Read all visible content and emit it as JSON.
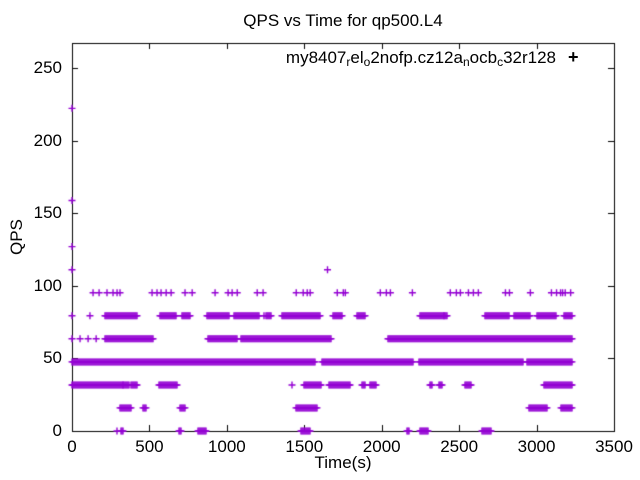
{
  "window": {
    "background": "#ffffff",
    "frame_color": "#000000"
  },
  "legend": {
    "plain_name": "my8407_rel_o2nofp.cz12a_nocb_c32r128",
    "segments": [
      {
        "text": "my8407"
      },
      {
        "text": "r",
        "sub": true
      },
      {
        "text": "el"
      },
      {
        "text": "o",
        "sub": true
      },
      {
        "text": "2nofp.cz12a"
      },
      {
        "text": "n",
        "sub": true
      },
      {
        "text": "ocb"
      },
      {
        "text": "c",
        "sub": true
      },
      {
        "text": "32r128"
      }
    ],
    "marker_glyph": "+",
    "marker_color": "#9400D3",
    "position": "top-right-inside"
  },
  "chart_data": {
    "type": "scatter",
    "title": "QPS vs Time for qp500.L4",
    "xlabel": "Time(s)",
    "ylabel": "QPS",
    "xlim": [
      0,
      3500
    ],
    "ylim": [
      0,
      267
    ],
    "xticks": [
      0,
      500,
      1000,
      1500,
      2000,
      2500,
      3000,
      3500
    ],
    "yticks": [
      0,
      50,
      100,
      150,
      200,
      250
    ],
    "grid": false,
    "tick_style": "inward-mirrored",
    "series": [
      {
        "name": "my8407_rel_o2nofp.cz12a_nocb_c32r128",
        "marker": "plus",
        "color": "#9400D3"
      }
    ],
    "x_data_range": [
      0,
      3230
    ],
    "qps_levels": [
      0,
      15.9,
      31.7,
      47.6,
      63.5,
      79.4,
      95.2
    ],
    "bands": [
      {
        "qps": 95.2,
        "x": [
          136,
          175,
          226,
          265,
          291,
          310,
          517,
          549,
          575,
          608,
          640,
          730,
          776,
          924,
          1008,
          1034,
          1067,
          1196,
          1234,
          1448,
          1493,
          1519,
          1538,
          1713,
          1752,
          1765,
          1991,
          2030,
          2056,
          2198,
          2443,
          2482,
          2508,
          2560,
          2592,
          2624,
          2799,
          2825,
          2960,
          3096,
          3129,
          3155,
          3168,
          3185,
          3220
        ]
      },
      {
        "qps": 79.4,
        "x": [
          0,
          116
        ],
        "segments": [
          {
            "x0": 213,
            "x1": 1900,
            "coverage": 0.58,
            "mean_run_s": 130
          },
          {
            "x0": 1900,
            "x1": 2400,
            "coverage": 0.42,
            "mean_run_s": 85
          },
          {
            "x0": 2400,
            "x1": 3230,
            "coverage": 0.6,
            "mean_run_s": 130
          }
        ]
      },
      {
        "qps": 63.5,
        "x": [
          0,
          52,
          104,
          156
        ],
        "segments": [
          {
            "x0": 210,
            "x1": 3230,
            "coverage": 0.88,
            "mean_run_s": 840
          }
        ]
      },
      {
        "qps": 47.6,
        "segments": [
          {
            "x0": 0,
            "x1": 3230,
            "coverage": 0.93,
            "mean_run_s": 1030
          }
        ]
      },
      {
        "qps": 31.7,
        "segments": [
          {
            "x0": 0,
            "x1": 330,
            "coverage": 0.97,
            "mean_run_s": 1300
          },
          {
            "x0": 330,
            "x1": 3230,
            "coverage": 0.38,
            "mean_run_s": 120
          }
        ]
      },
      {
        "qps": 15.9,
        "segments": [
          {
            "x0": 0,
            "x1": 480,
            "coverage": 0.3,
            "mean_run_s": 65
          },
          {
            "x0": 480,
            "x1": 3230,
            "coverage": 0.18,
            "mean_run_s": 65
          }
        ]
      },
      {
        "qps": 0,
        "segments": [
          {
            "x0": 25,
            "x1": 1450,
            "coverage": 0.15,
            "mean_run_s": 50
          },
          {
            "x0": 1450,
            "x1": 3230,
            "coverage": 0.09,
            "mean_run_s": 50
          }
        ]
      }
    ],
    "outliers": [
      [
        0,
        222.2
      ],
      [
        0,
        158.7
      ],
      [
        0,
        127.0
      ],
      [
        0,
        111.1
      ],
      [
        1650,
        111.1
      ]
    ]
  }
}
